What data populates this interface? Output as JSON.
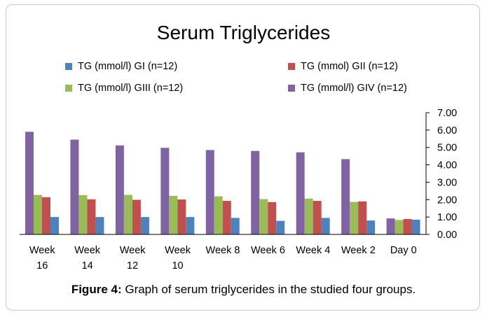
{
  "chart_data": {
    "type": "bar",
    "title": "Serum Triglycerides",
    "categories": [
      [
        "Week",
        "16"
      ],
      [
        "Week",
        "14"
      ],
      [
        "Week",
        "12"
      ],
      [
        "Week",
        "10"
      ],
      [
        "Week 8"
      ],
      [
        "Week 6"
      ],
      [
        "Week 4"
      ],
      [
        "Week 2"
      ],
      [
        "Day 0"
      ]
    ],
    "series": [
      {
        "name": "TG (mmol/l) GIV (n=12)",
        "color": "#8064A2",
        "values": [
          5.9,
          5.45,
          5.12,
          4.98,
          4.85,
          4.8,
          4.72,
          4.33,
          0.92
        ]
      },
      {
        "name": "TG (mmol/l) GIII (n=12)",
        "color": "#9BBB59",
        "values": [
          2.27,
          2.26,
          2.27,
          2.22,
          2.19,
          2.03,
          2.06,
          1.87,
          0.83
        ]
      },
      {
        "name": "TG (mmol) GII (n=12)",
        "color": "#C0504D",
        "values": [
          2.14,
          2.02,
          1.99,
          2.01,
          1.93,
          1.86,
          1.93,
          1.9,
          0.89
        ]
      },
      {
        "name": "TG (mmol/l) GI (n=12)",
        "color": "#4F81BD",
        "values": [
          1.0,
          1.0,
          1.0,
          1.0,
          0.95,
          0.78,
          0.95,
          0.8,
          0.85
        ]
      }
    ],
    "ylim": [
      0,
      7
    ],
    "yticks": [
      "0.00",
      "1.00",
      "2.00",
      "3.00",
      "4.00",
      "5.00",
      "6.00",
      "7.00"
    ],
    "grid": false,
    "y_axis_side": "right",
    "legend_placement": "top"
  },
  "legend": {
    "gi": "TG (mmol/l) GI (n=12)",
    "gii": "TG (mmol) GII (n=12)",
    "giii": "TG (mmol/l) GIII (n=12)",
    "giv": "TG (mmol/l) GIV (n=12)"
  },
  "caption": {
    "label": "Figure 4:",
    "text": " Graph of serum triglycerides in the studied four groups."
  }
}
